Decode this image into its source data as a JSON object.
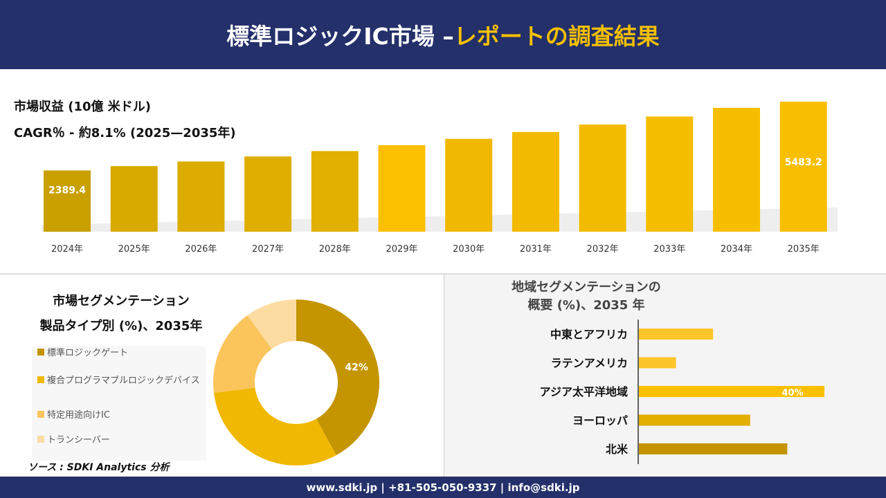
{
  "header": {
    "title_main": "標準ロジックIC市場 –",
    "title_accent": "レポートの調査結果"
  },
  "chart_data": [
    {
      "type": "bar",
      "title": "市場収益 (10億 米ドル)",
      "subtitle": "CAGR％ - 約8.1% (2025—2035年)",
      "categories": [
        "2024年",
        "2025年",
        "2026年",
        "2027年",
        "2028年",
        "2029年",
        "2030年",
        "2031年",
        "2032年",
        "2033年",
        "2034年",
        "2035年"
      ],
      "values": [
        2389.4,
        2583,
        2792,
        3018,
        3262,
        3527,
        3812,
        4121,
        4455,
        4816,
        5206,
        5483.2
      ],
      "data_labels": {
        "0": "2389.4",
        "11": "5483.2"
      },
      "colors": [
        "#c9a000",
        "#d8aa00",
        "#dcac00",
        "#deae00",
        "#e2b000",
        "#fcc000",
        "#f0b800",
        "#f2ba00",
        "#f3bb00",
        "#f5bd00",
        "#f7be00",
        "#f8bf00"
      ]
    },
    {
      "type": "pie",
      "title": "市場セグメンテーション",
      "subtitle": "製品タイプ別 (%)、2035年",
      "categories": [
        "標準ロジックゲート",
        "複合プログラマブルロジックデバイス",
        "特定用途向けIC",
        "トランシーバー"
      ],
      "values": [
        42,
        31,
        17,
        10
      ],
      "data_labels": {
        "0": "42%"
      },
      "colors": [
        "#c49500",
        "#f0b800",
        "#fbc55c",
        "#fddca2"
      ],
      "legend": "left"
    },
    {
      "type": "bar",
      "orientation": "horizontal",
      "title": "地域セグメンテーションの",
      "subtitle": "概要 (%)、2035 年",
      "categories": [
        "中東とアフリカ",
        "ラテンアメリカ",
        "アジア太平洋地域",
        "ヨーロッパ",
        "北米"
      ],
      "values": [
        16,
        8,
        40,
        24,
        32
      ],
      "data_labels": {
        "2": "40%"
      },
      "colors": [
        "#fcc52a",
        "#fcc52a",
        "#fcc000",
        "#e2ae00",
        "#c49500"
      ]
    }
  ],
  "source": "ソース : SDKI Analytics 分析",
  "footer": "www.sdki.jp | +81-505-050-9337 | info@sdki.jp"
}
